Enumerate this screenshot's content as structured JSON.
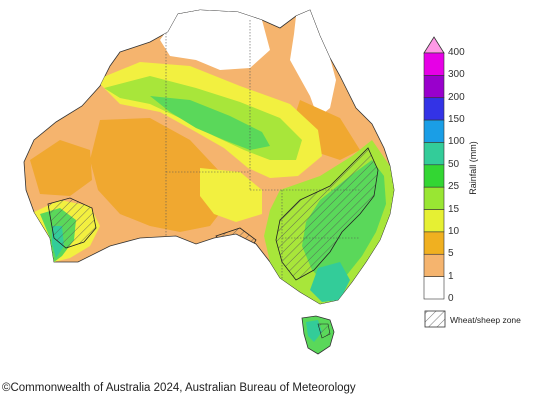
{
  "legend": {
    "title": "Rainfall (mm)",
    "ticks": [
      "400",
      "300",
      "200",
      "150",
      "100",
      "50",
      "25",
      "15",
      "10",
      "5",
      "1",
      "0"
    ],
    "colors": [
      "#ff99e6",
      "#e600e6",
      "#9900cc",
      "#3333e6",
      "#1a9ee6",
      "#33cc99",
      "#33d633",
      "#99e633",
      "#e6f033",
      "#f0b020",
      "#f5b46e",
      "#ffffff"
    ],
    "hatch_label": "Wheat/sheep zone"
  },
  "map": {
    "colors": {
      "land_orange": "#f5b46e",
      "deep_orange": "#f0a830",
      "yellow": "#f2f040",
      "light_green": "#a8e63a",
      "green": "#5ad85a",
      "teal": "#33cc99",
      "no_data": "#ffffff"
    }
  },
  "footer": {
    "copyright": "©Commonwealth of Australia 2024, Australian Bureau of Meteorology"
  }
}
